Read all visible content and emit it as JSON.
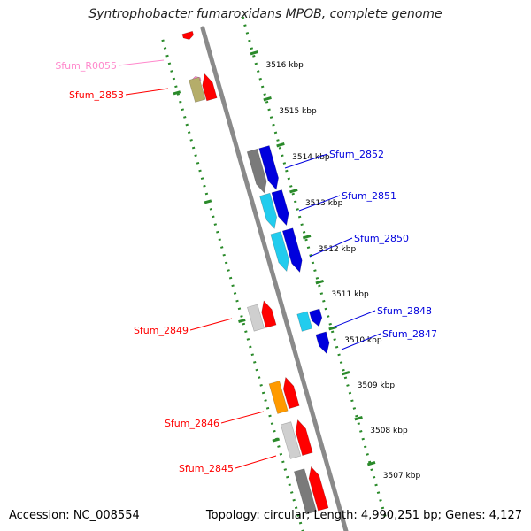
{
  "title": "Syntrophobacter fumaroxidans MPOB, complete genome",
  "accession": "Accession: NC_008554",
  "summary": "Topology: circular; Length: 4,990,251 bp; Genes: 4,127",
  "colors": {
    "red": "#ff0000",
    "blue": "#0000dd",
    "cyan": "#22ccee",
    "gray": "#7a7a7a",
    "lightgray": "#cfcfcf",
    "olive": "#b5ad6a",
    "orange": "#ff9a00",
    "pink": "#ff88cc",
    "grid": "#2a8a2a"
  },
  "scale_labels": [
    {
      "label": "3516 kbp"
    },
    {
      "label": "3515 kbp"
    },
    {
      "label": "3514 kbp"
    },
    {
      "label": "3513 kbp"
    },
    {
      "label": "3512 kbp"
    },
    {
      "label": "3511 kbp"
    },
    {
      "label": "3510 kbp"
    },
    {
      "label": "3509 kbp"
    },
    {
      "label": "3508 kbp"
    },
    {
      "label": "3507 kbp"
    }
  ],
  "gene_labels": [
    {
      "label": "Sfum_R0055",
      "color": "pink"
    },
    {
      "label": "Sfum_2853",
      "color": "red"
    },
    {
      "label": "Sfum_2852",
      "color": "blue"
    },
    {
      "label": "Sfum_2851",
      "color": "blue"
    },
    {
      "label": "Sfum_2850",
      "color": "blue"
    },
    {
      "label": "Sfum_2849",
      "color": "red"
    },
    {
      "label": "Sfum_2848",
      "color": "blue"
    },
    {
      "label": "Sfum_2847",
      "color": "blue"
    },
    {
      "label": "Sfum_2846",
      "color": "red"
    },
    {
      "label": "Sfum_2845",
      "color": "red"
    }
  ]
}
